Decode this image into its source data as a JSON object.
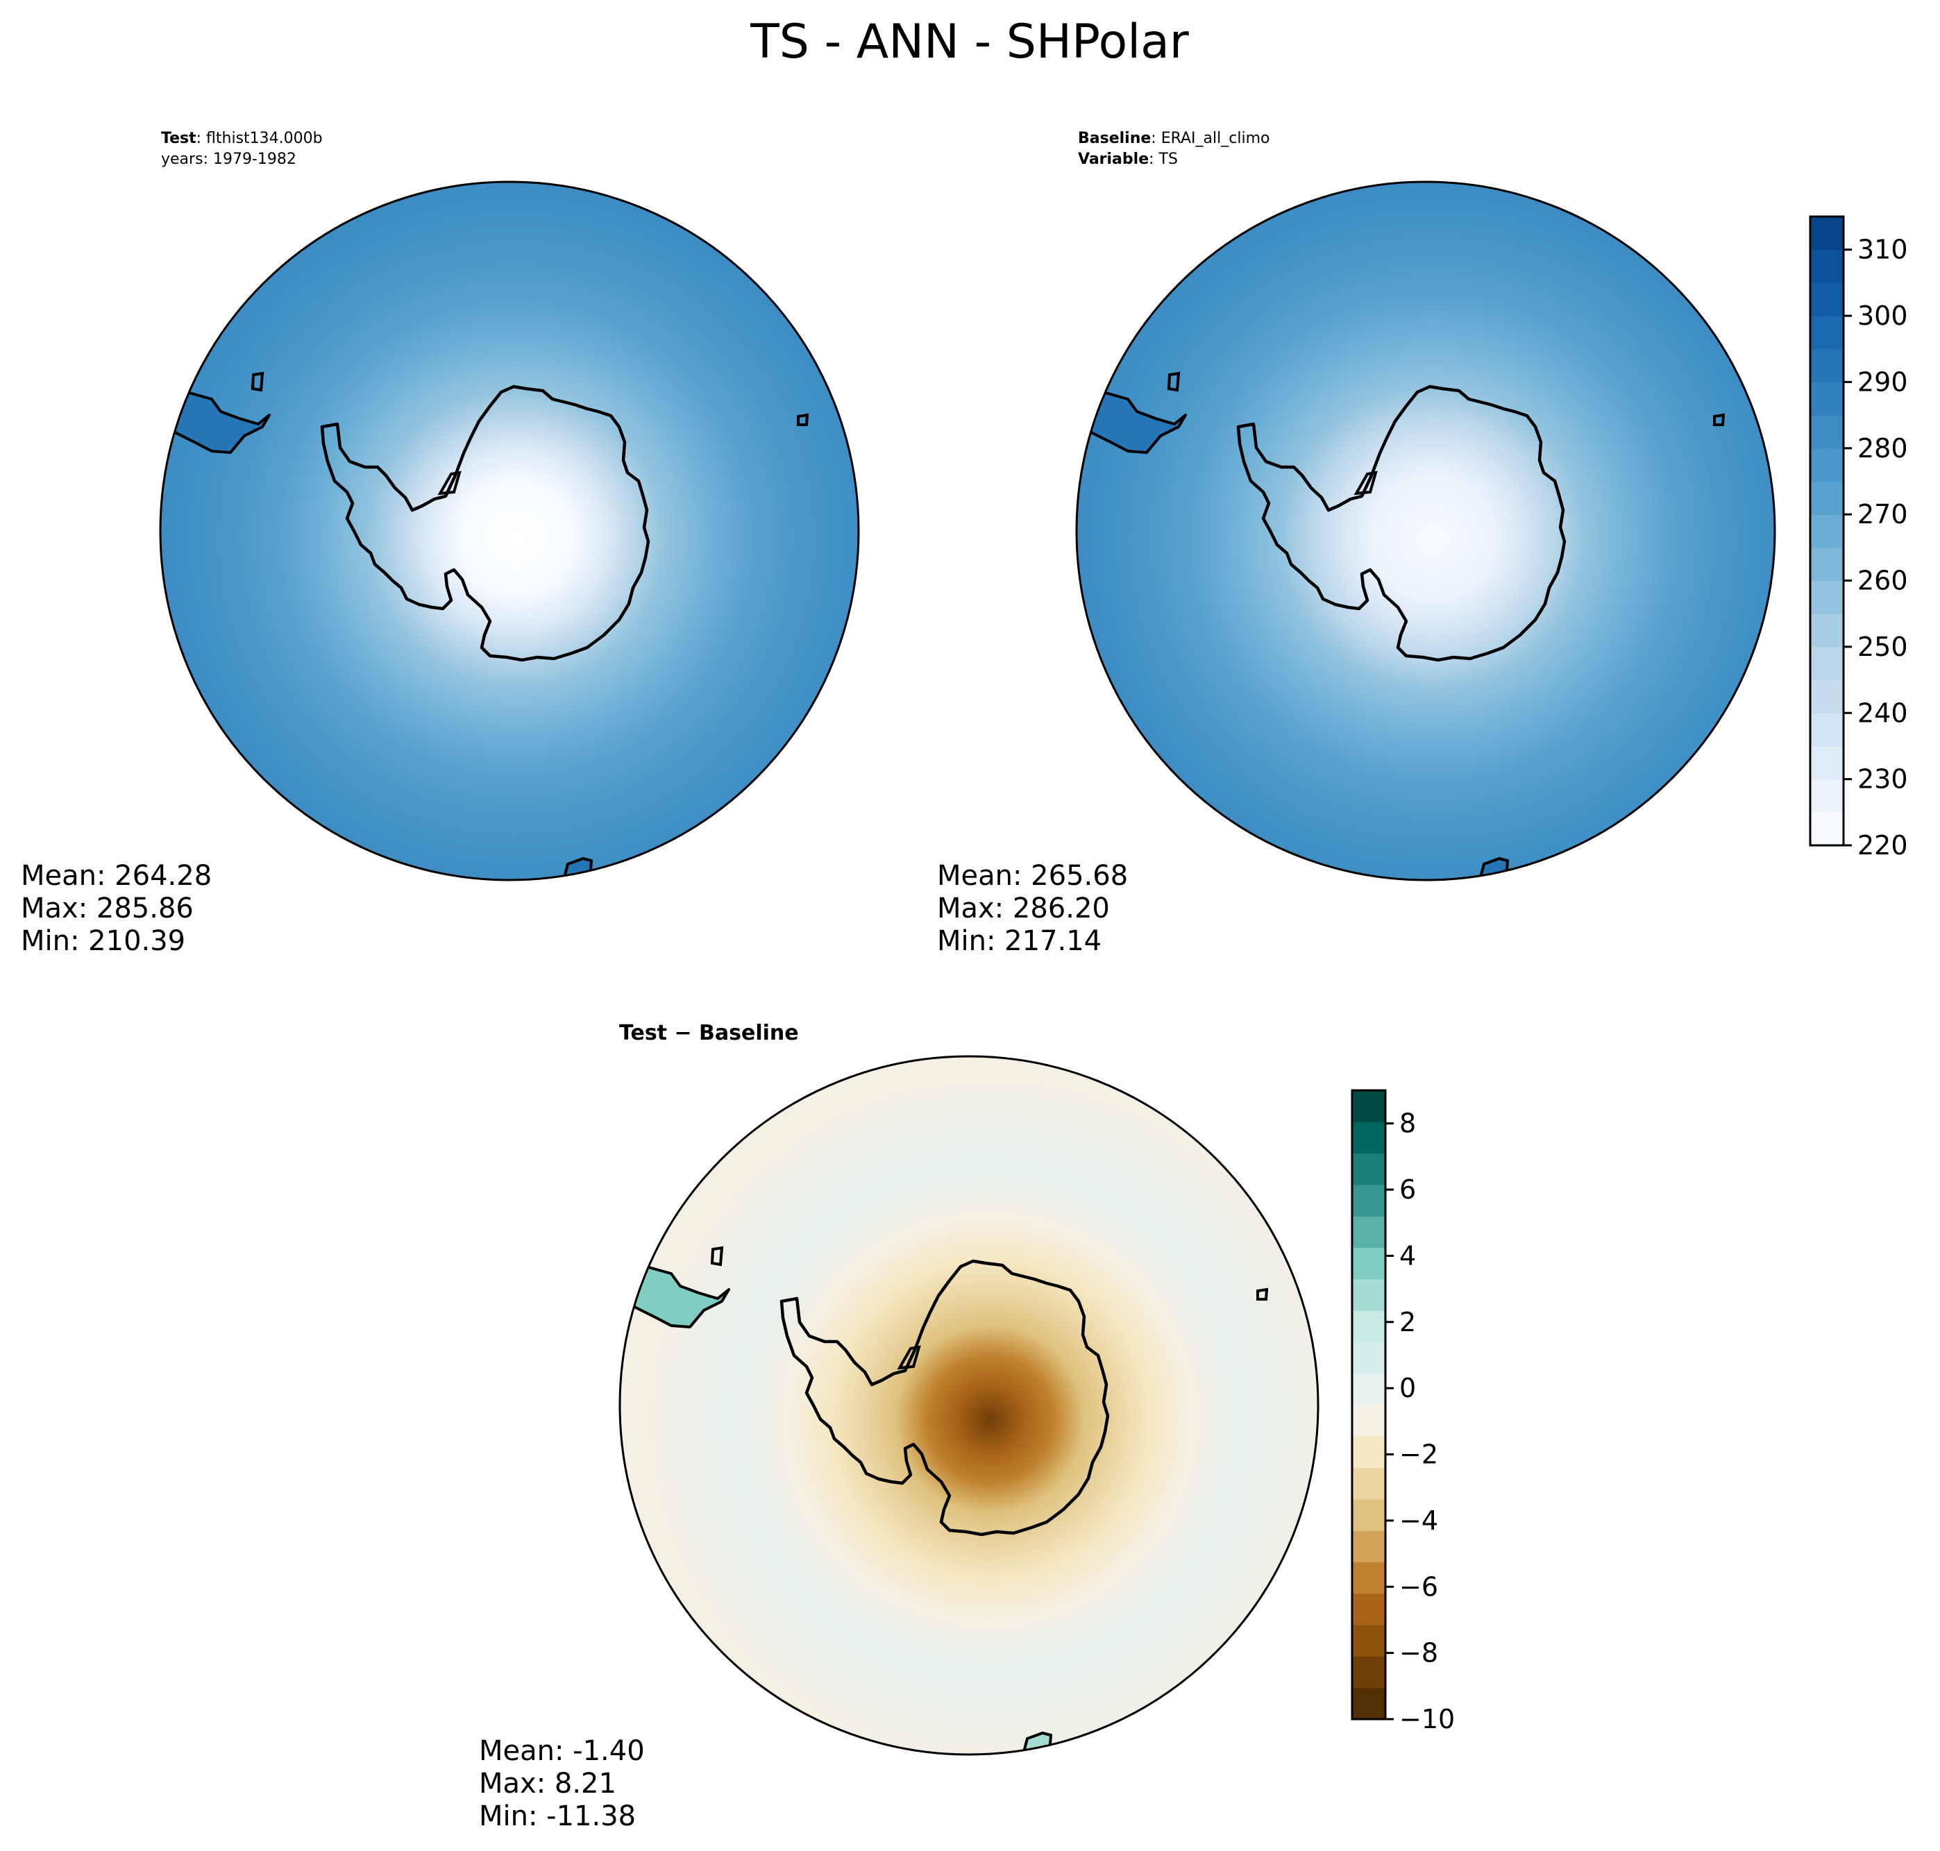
{
  "figure": {
    "title": "TS - ANN - SHPolar"
  },
  "panels": {
    "test": {
      "header_key_1": "Test",
      "header_val_1": "flthist134.000b",
      "header_line_2": "years: 1979-1982",
      "mean": "Mean: 264.28",
      "max": "Max: 285.86",
      "min": "Min: 210.39"
    },
    "baseline": {
      "header_key_1": "Baseline",
      "header_val_1": "ERAI_all_climo",
      "header_key_2": "Variable",
      "header_val_2": "TS",
      "mean": "Mean: 265.68",
      "max": "Max: 286.20",
      "min": "Min: 217.14"
    },
    "diff": {
      "title": "Test − Baseline",
      "mean": "Mean: -1.40",
      "max": "Max:  8.21",
      "min": "Min: -11.38"
    }
  },
  "chart_data": [
    {
      "type": "heatmap",
      "projection": "south-polar-stereographic",
      "panel": "test",
      "stats": {
        "mean": 264.28,
        "max": 285.86,
        "min": 210.39
      },
      "colormap": "Blues",
      "levels": [
        220,
        225,
        230,
        235,
        240,
        245,
        250,
        255,
        260,
        265,
        270,
        275,
        280,
        285,
        290,
        295,
        300,
        305,
        310,
        315
      ]
    },
    {
      "type": "heatmap",
      "projection": "south-polar-stereographic",
      "panel": "baseline",
      "stats": {
        "mean": 265.68,
        "max": 286.2,
        "min": 217.14
      },
      "colormap": "Blues",
      "colorbar": {
        "range": [
          220,
          315
        ],
        "ticks": [
          220,
          230,
          240,
          250,
          260,
          270,
          280,
          290,
          300,
          310
        ],
        "tick_labels": [
          "220",
          "230",
          "240",
          "250",
          "260",
          "270",
          "280",
          "290",
          "300",
          "310"
        ],
        "colors": [
          "#f7fbff",
          "#ebf3fb",
          "#e0ecf8",
          "#d4e4f4",
          "#c8dcf0",
          "#b9d6ea",
          "#a8cee4",
          "#94c4df",
          "#7fb9da",
          "#6aaed6",
          "#58a1cf",
          "#4a98c9",
          "#3d8dc4",
          "#3181bd",
          "#2575b7",
          "#1b69af",
          "#125da6",
          "#0b519a",
          "#084388"
        ]
      }
    },
    {
      "type": "heatmap",
      "projection": "south-polar-stereographic",
      "panel": "diff",
      "stats": {
        "mean": -1.4,
        "max": 8.21,
        "min": -11.38
      },
      "colormap": "BrBG",
      "colorbar": {
        "range": [
          -10,
          9
        ],
        "ticks": [
          -10,
          -8,
          -6,
          -4,
          -2,
          0,
          2,
          4,
          6,
          8
        ],
        "tick_labels": [
          "−10",
          "−8",
          "−6",
          "−4",
          "−2",
          "0",
          "2",
          "4",
          "6",
          "8"
        ],
        "colors": [
          "#543005",
          "#6f3f08",
          "#8c510a",
          "#a86318",
          "#bf812d",
          "#d3a35c",
          "#dfc27d",
          "#ead4a2",
          "#f6e8c3",
          "#f4f0e4",
          "#e8f1ef",
          "#d5eeea",
          "#c7eae5",
          "#a5dbd2",
          "#80cdc1",
          "#5ab2a8",
          "#35978f",
          "#1c7f77",
          "#01665e",
          "#004c42"
        ]
      }
    }
  ],
  "colors": {
    "map_ocean_test": "#3d8dc4",
    "map_ocean_diff": "#f4f0e4",
    "coastline": "#000000"
  }
}
